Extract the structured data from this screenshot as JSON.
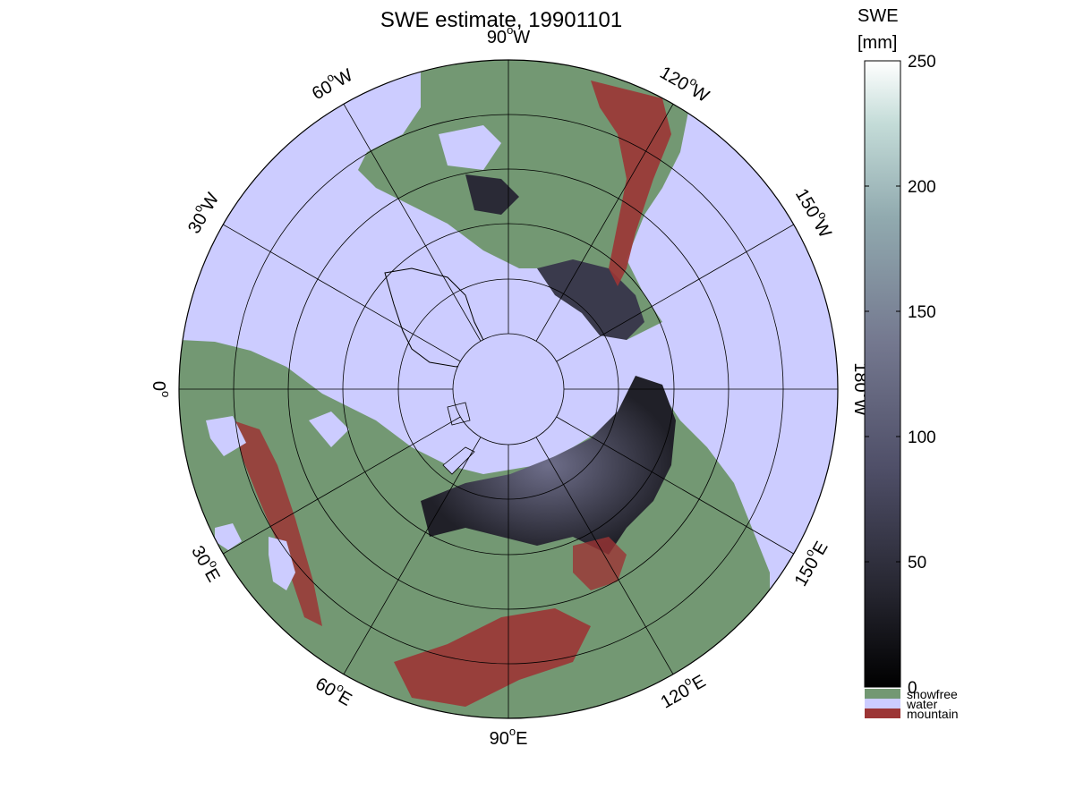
{
  "title": "SWE estimate, 19901101",
  "map": {
    "projection": "north-polar",
    "meridian_labels": [
      {
        "deg": "90",
        "hemi": "W"
      },
      {
        "deg": "120",
        "hemi": "W"
      },
      {
        "deg": "150",
        "hemi": "W"
      },
      {
        "deg": "180",
        "hemi": "W"
      },
      {
        "deg": "150",
        "hemi": "E"
      },
      {
        "deg": "120",
        "hemi": "E"
      },
      {
        "deg": "90",
        "hemi": "E"
      },
      {
        "deg": "60",
        "hemi": "E"
      },
      {
        "deg": "30",
        "hemi": "E"
      },
      {
        "deg": "0",
        "hemi": ""
      },
      {
        "deg": "30",
        "hemi": "W"
      },
      {
        "deg": "60",
        "hemi": "W"
      }
    ],
    "degree_symbol": "o",
    "colors": {
      "water": "#ccccff",
      "snowfree": "#739873",
      "mountain": "#9c3535",
      "snow_low": "#15151c",
      "snow_mid": "#4d4d66",
      "coastline": "#000000",
      "grid": "#000000"
    }
  },
  "colorbar": {
    "title_line1": "SWE",
    "title_line2": "[mm]",
    "ticks": [
      "0",
      "50",
      "100",
      "150",
      "200",
      "250"
    ],
    "range": [
      0,
      250
    ],
    "gradient": [
      "#000000",
      "#2c2c3a",
      "#5a5a78",
      "#828ea0",
      "#a8c6c4",
      "#ffffff"
    ],
    "categories": [
      {
        "label": "snowfree",
        "color": "#739873"
      },
      {
        "label": "water",
        "color": "#ccccff"
      },
      {
        "label": "mountain",
        "color": "#9c3535"
      }
    ]
  }
}
